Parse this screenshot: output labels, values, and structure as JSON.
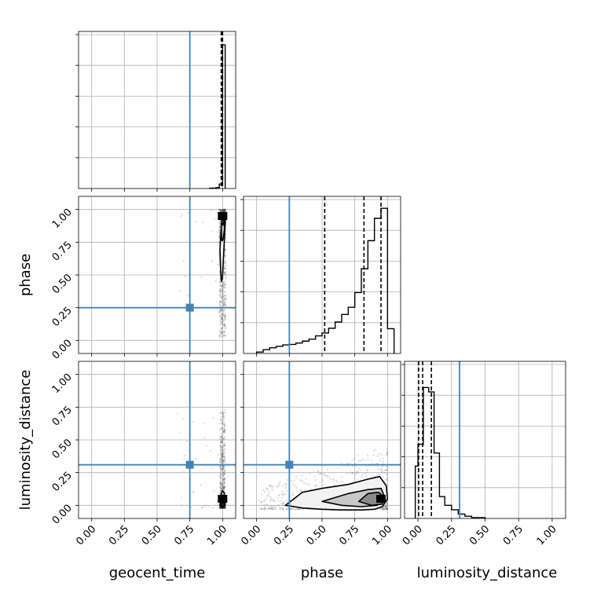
{
  "chart_data": {
    "type": "corner",
    "parameters": [
      "geocent_time",
      "phase",
      "luminosity_distance"
    ],
    "axis_range": [
      -0.1,
      1.1
    ],
    "ticks": [
      0.0,
      0.25,
      0.5,
      0.75,
      1.0
    ],
    "tick_labels": [
      "0.00",
      "0.25",
      "0.50",
      "0.75",
      "1.00"
    ],
    "grid": true,
    "truth": {
      "color": "#4682b4",
      "geocent_time": 0.75,
      "phase": 0.25,
      "luminosity_distance": 0.31
    },
    "histograms": {
      "geocent_time": {
        "bin_edges": [
          0.9,
          0.925,
          0.95,
          0.975,
          1.0,
          1.02
        ],
        "counts": [
          2,
          3,
          6,
          30,
          960
        ],
        "ymax": 1050,
        "quantiles": [
          0.99,
          0.998,
          1.0
        ]
      },
      "phase": {
        "bin_edges": [
          0.0,
          0.05,
          0.1,
          0.15,
          0.2,
          0.25,
          0.3,
          0.35,
          0.4,
          0.45,
          0.5,
          0.55,
          0.6,
          0.65,
          0.7,
          0.75,
          0.8,
          0.85,
          0.9,
          0.95,
          1.0,
          1.05
        ],
        "counts": [
          3,
          8,
          12,
          15,
          18,
          19,
          22,
          26,
          30,
          37,
          43,
          53,
          66,
          82,
          97,
          128,
          178,
          237,
          284,
          305,
          52
        ],
        "ymax": 330,
        "quantiles": [
          0.52,
          0.82,
          0.95
        ]
      },
      "luminosity_distance": {
        "bin_edges": [
          -0.02,
          0.0,
          0.04,
          0.08,
          0.12,
          0.16,
          0.2,
          0.25,
          0.3,
          0.35,
          0.4,
          0.5
        ],
        "counts": [
          12,
          17,
          30,
          29,
          15,
          5,
          3,
          2,
          1,
          0.5,
          0.2
        ],
        "ymax": 36,
        "quantiles": [
          0.005,
          0.035,
          0.1
        ]
      }
    },
    "contours": {
      "phase_vs_geocent_time": [
        {
          "x": [
            0.99,
            0.985,
            0.98,
            0.99,
            1.0,
            1.01,
            1.02,
            1.02,
            1.015,
            1.008,
            1.0,
            0.995,
            0.99
          ],
          "y": [
            0.45,
            0.55,
            0.7,
            0.85,
            0.93,
            0.97,
            0.95,
            0.9,
            0.8,
            0.65,
            0.5,
            0.46,
            0.45
          ]
        },
        {
          "x": [
            0.993,
            0.99,
            1.0,
            1.01,
            1.015,
            1.005,
            0.998,
            0.993
          ],
          "y": [
            0.77,
            0.88,
            0.96,
            0.93,
            0.85,
            0.78,
            0.76,
            0.77
          ]
        },
        {
          "x": [
            0.995,
            1.0,
            1.008,
            1.01,
            1.0,
            0.995
          ],
          "y": [
            0.9,
            0.95,
            0.94,
            0.9,
            0.88,
            0.9
          ]
        }
      ],
      "luminosity_distance_vs_geocent_time": [
        {
          "x": [
            0.98,
            0.99,
            1.0,
            1.01,
            1.02,
            1.02,
            1.01,
            1.0,
            0.99,
            0.98
          ],
          "y": [
            0.0,
            -0.01,
            -0.015,
            -0.01,
            0.0,
            0.05,
            0.1,
            0.11,
            0.09,
            0.0
          ]
        },
        {
          "x": [
            0.985,
            1.0,
            1.015,
            1.015,
            1.0,
            0.985
          ],
          "y": [
            0.01,
            -0.005,
            0.01,
            0.06,
            0.08,
            0.01
          ]
        },
        {
          "x": [
            0.99,
            1.0,
            1.01,
            1.01,
            1.0,
            0.99
          ],
          "y": [
            0.02,
            0.01,
            0.02,
            0.05,
            0.06,
            0.02
          ]
        }
      ],
      "luminosity_distance_vs_phase": [
        {
          "x": [
            0.22,
            0.35,
            0.5,
            0.65,
            0.8,
            0.9,
            0.96,
            1.0,
            0.99,
            0.94,
            0.85,
            0.7,
            0.5,
            0.35,
            0.22
          ],
          "y": [
            0.0,
            -0.02,
            -0.03,
            -0.035,
            -0.035,
            -0.03,
            -0.01,
            0.05,
            0.15,
            0.22,
            0.2,
            0.16,
            0.13,
            0.1,
            0.0
          ]
        },
        {
          "x": [
            0.5,
            0.65,
            0.8,
            0.92,
            0.98,
            0.95,
            0.85,
            0.7,
            0.5
          ],
          "y": [
            0.03,
            0.0,
            -0.01,
            0.0,
            0.06,
            0.13,
            0.12,
            0.09,
            0.03
          ]
        },
        {
          "x": [
            0.78,
            0.88,
            0.96,
            0.98,
            0.93,
            0.85,
            0.78
          ],
          "y": [
            0.03,
            0.0,
            0.01,
            0.06,
            0.1,
            0.09,
            0.03
          ]
        }
      ]
    },
    "density_peaks": {
      "phase_vs_geocent_time": {
        "x": 1.0,
        "y": 0.95
      },
      "luminosity_distance_vs_geocent_time": {
        "x": 1.0,
        "y": 0.05
      },
      "luminosity_distance_vs_phase": {
        "x": 0.95,
        "y": 0.05
      }
    }
  }
}
